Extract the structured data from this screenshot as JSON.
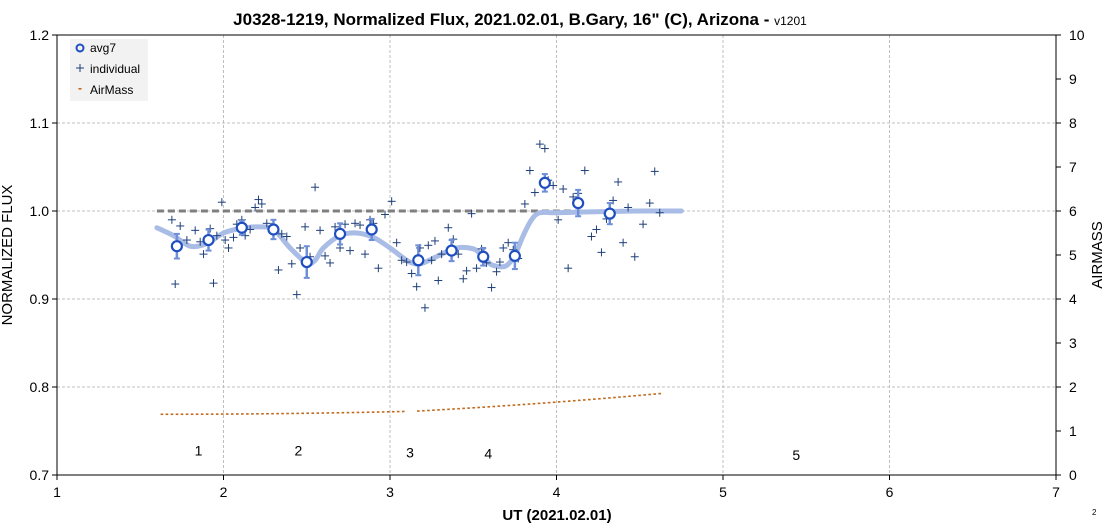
{
  "chart_data": {
    "type": "scatter",
    "title": "J0328-1219, Normalized Flux, 2021.02.01, B.Gary, 16\" (C), Arizona - ",
    "title_suffix": "v1201",
    "xlabel": "UT (2021.02.01)",
    "ylabel": "NORMALIZED FLUX",
    "y2label": "AIRMASS",
    "xlim": [
      1,
      7
    ],
    "ylim": [
      0.7,
      1.2
    ],
    "y2lim": [
      0,
      10
    ],
    "x_ticks": [
      "1",
      "2",
      "3",
      "4",
      "5",
      "6",
      "7"
    ],
    "y_ticks": [
      "0.7",
      "0.8",
      "0.9",
      "1.0",
      "1.1",
      "1.2"
    ],
    "y2_ticks": [
      "0",
      "1",
      "2",
      "3",
      "4",
      "5",
      "6",
      "7",
      "8",
      "9",
      "10"
    ],
    "grid": true,
    "legend_position": "top-left",
    "legend": [
      "avg7",
      "individual",
      "AirMass"
    ],
    "colors": {
      "avg7": "#1f4fbf",
      "individual": "#1f3f7a",
      "airmass": "#c0691b",
      "model": "#a8bce6",
      "reference": "#7f7f7f",
      "grid": "#bfbfbf"
    },
    "series": [
      {
        "name": "avg7",
        "x": [
          1.72,
          1.91,
          2.11,
          2.3,
          2.5,
          2.7,
          2.89,
          3.17,
          3.37,
          3.56,
          3.75,
          3.93,
          4.13,
          4.32
        ],
        "y": [
          0.96,
          0.967,
          0.981,
          0.979,
          0.942,
          0.974,
          0.979,
          0.944,
          0.955,
          0.948,
          0.949,
          1.032,
          1.009,
          0.997
        ],
        "err": [
          0.014,
          0.012,
          0.008,
          0.011,
          0.018,
          0.012,
          0.012,
          0.017,
          0.012,
          0.01,
          0.015,
          0.01,
          0.015,
          0.012
        ]
      },
      {
        "name": "individual",
        "x": [
          1.69,
          1.71,
          1.74,
          1.78,
          1.83,
          1.86,
          1.88,
          1.92,
          1.94,
          1.96,
          1.99,
          2.01,
          2.03,
          2.06,
          2.08,
          2.11,
          2.13,
          2.16,
          2.19,
          2.21,
          2.23,
          2.26,
          2.29,
          2.33,
          2.35,
          2.38,
          2.41,
          2.44,
          2.46,
          2.49,
          2.52,
          2.55,
          2.58,
          2.61,
          2.64,
          2.67,
          2.7,
          2.73,
          2.76,
          2.79,
          2.82,
          2.85,
          2.88,
          2.9,
          2.93,
          2.97,
          3.01,
          3.04,
          3.07,
          3.1,
          3.13,
          3.16,
          3.18,
          3.21,
          3.23,
          3.25,
          3.27,
          3.29,
          3.31,
          3.35,
          3.38,
          3.41,
          3.44,
          3.46,
          3.49,
          3.52,
          3.55,
          3.58,
          3.61,
          3.64,
          3.66,
          3.68,
          3.71,
          3.74,
          3.77,
          3.81,
          3.84,
          3.87,
          3.9,
          3.93,
          3.95,
          3.98,
          4.01,
          4.04,
          4.07,
          4.1,
          4.13,
          4.17,
          4.21,
          4.24,
          4.27,
          4.3,
          4.34,
          4.37,
          4.4,
          4.43,
          4.47,
          4.52,
          4.56,
          4.59,
          4.62
        ],
        "y": [
          0.99,
          0.917,
          0.983,
          0.967,
          0.978,
          0.965,
          0.951,
          0.98,
          0.918,
          0.972,
          1.01,
          0.967,
          0.958,
          0.97,
          0.985,
          0.99,
          0.972,
          0.979,
          1.004,
          1.013,
          1.008,
          0.986,
          0.982,
          0.933,
          0.974,
          0.971,
          0.94,
          0.905,
          0.958,
          0.982,
          0.948,
          1.027,
          0.978,
          0.949,
          0.941,
          0.982,
          0.958,
          0.985,
          0.955,
          0.986,
          0.984,
          0.951,
          0.99,
          0.986,
          0.935,
          0.996,
          1.011,
          0.964,
          0.944,
          0.942,
          0.929,
          0.914,
          0.958,
          0.89,
          0.961,
          0.944,
          0.966,
          0.921,
          0.951,
          0.981,
          0.968,
          0.951,
          0.923,
          0.932,
          0.997,
          0.935,
          0.957,
          0.941,
          0.913,
          0.931,
          0.942,
          0.958,
          0.964,
          0.956,
          0.946,
          1.008,
          1.046,
          1.021,
          1.076,
          1.071,
          1.035,
          1.029,
          0.99,
          1.025,
          0.935,
          1.016,
          1.02,
          1.046,
          0.971,
          0.979,
          0.953,
          0.991,
          1.012,
          1.033,
          0.964,
          1.004,
          0.948,
          0.985,
          1.009,
          1.045,
          0.998
        ],
        "marker": "+"
      },
      {
        "name": "AirMass",
        "x_start": 1.63,
        "x_end": 4.62,
        "count": 100,
        "gap": [
          3.08,
          3.16
        ],
        "airmass_start": 1.38,
        "airmass_mid_x": 3.15,
        "airmass_mid": 1.45,
        "airmass_end": 1.85,
        "axis": "y2"
      },
      {
        "name": "model",
        "x": [
          1.6,
          1.7,
          1.8,
          1.9,
          2.0,
          2.1,
          2.2,
          2.3,
          2.4,
          2.5,
          2.55,
          2.6,
          2.7,
          2.8,
          2.9,
          3.0,
          3.1,
          3.15,
          3.2,
          3.3,
          3.4,
          3.5,
          3.55,
          3.6,
          3.65,
          3.7,
          3.75,
          3.8,
          3.85,
          3.9,
          4.0,
          4.2,
          4.5,
          4.75
        ],
        "y": [
          0.981,
          0.972,
          0.96,
          0.963,
          0.975,
          0.98,
          0.982,
          0.979,
          0.958,
          0.941,
          0.944,
          0.958,
          0.972,
          0.975,
          0.97,
          0.958,
          0.944,
          0.94,
          0.941,
          0.95,
          0.958,
          0.957,
          0.95,
          0.94,
          0.937,
          0.938,
          0.95,
          0.972,
          0.99,
          0.998,
          0.998,
          0.999,
          1.0,
          1.0
        ]
      },
      {
        "name": "reference",
        "x": [
          1.6,
          4.75
        ],
        "y": [
          1.0,
          1.0
        ]
      }
    ],
    "annotations": [
      {
        "text": "1",
        "x": 1.85,
        "y": 0.722
      },
      {
        "text": "2",
        "x": 2.45,
        "y": 0.722
      },
      {
        "text": "3",
        "x": 3.12,
        "y": 0.72
      },
      {
        "text": "4",
        "x": 3.59,
        "y": 0.719
      },
      {
        "text": "5",
        "x": 5.44,
        "y": 0.717
      }
    ]
  },
  "corner_text": "2"
}
